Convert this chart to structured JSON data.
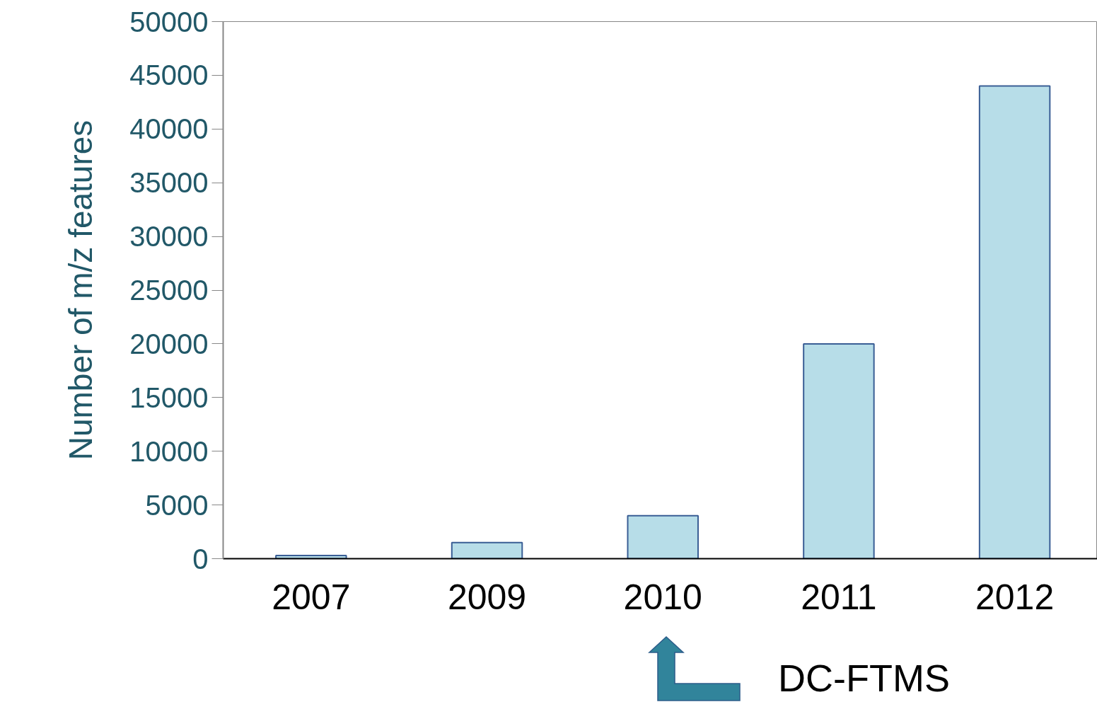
{
  "chart_data": {
    "type": "bar",
    "ylabel": "Number of m/z features",
    "categories": [
      "2007",
      "2009",
      "2010",
      "2011",
      "2012"
    ],
    "values": [
      300,
      1500,
      4000,
      20000,
      44000
    ],
    "color": "#b7dde8",
    "ylim": [
      0,
      50000
    ],
    "yticks": [
      0,
      5000,
      10000,
      15000,
      20000,
      25000,
      30000,
      35000,
      40000,
      45000,
      50000
    ],
    "grid": false,
    "annotations": [
      "DC-FTMS"
    ]
  }
}
